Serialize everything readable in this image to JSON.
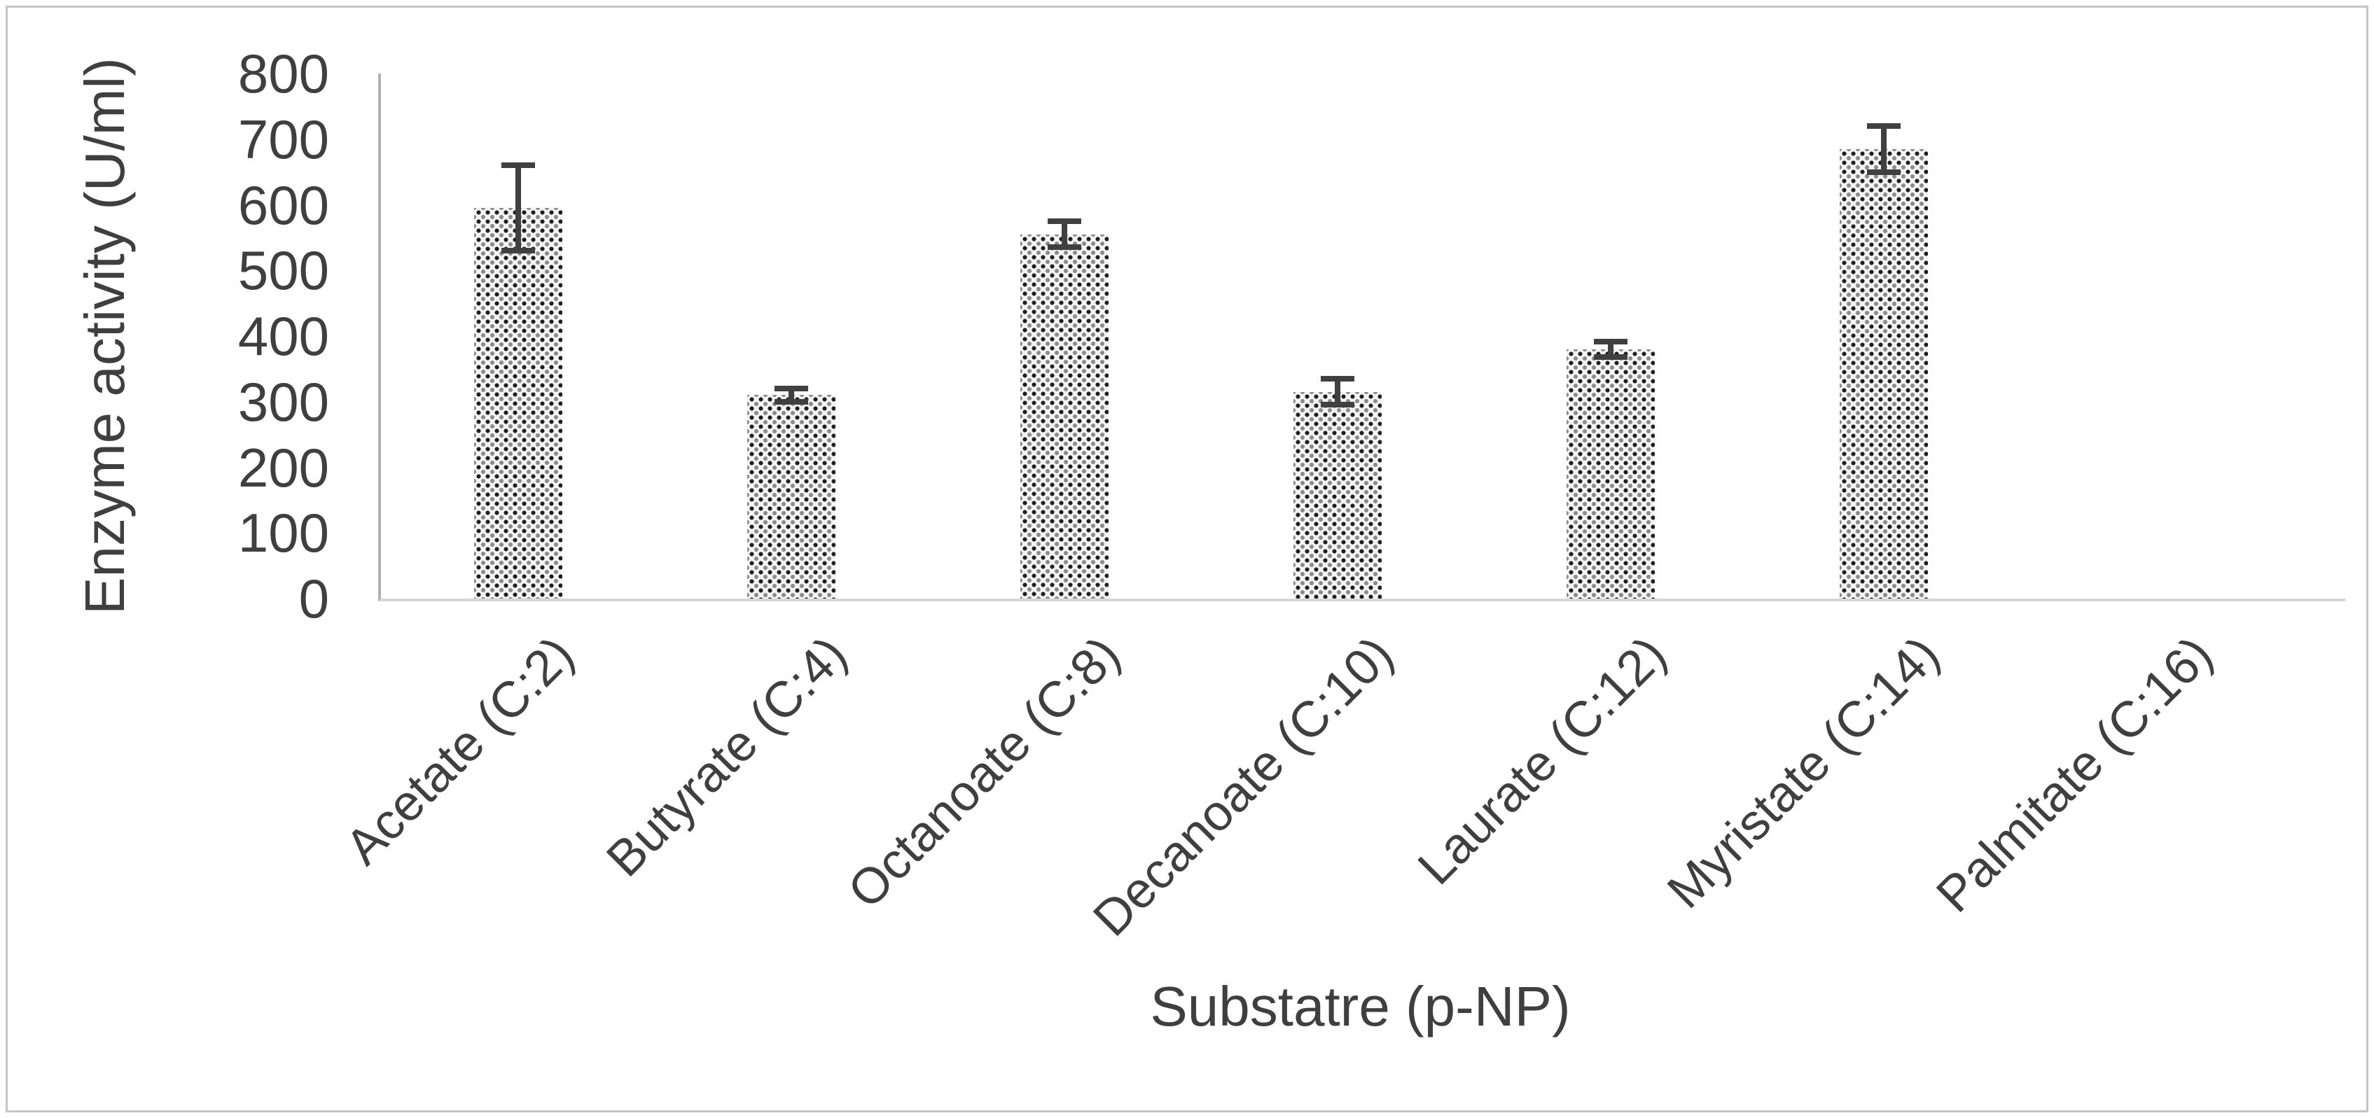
{
  "figure": {
    "background": "#ffffff",
    "border_color": "#c4c4c4"
  },
  "chart_data": {
    "type": "bar",
    "title": "",
    "xlabel": "Substatre (p-NP)",
    "ylabel": "Enzyme activity (U/ml)",
    "categories": [
      "Acetate (C:2)",
      "Butyrate (C:4)",
      "Octanoate (C:8)",
      "Decanoate (C:10)",
      "Laurate (C:12)",
      "Myristate (C:14)",
      "Palmitate (C:16)"
    ],
    "values": [
      595,
      310,
      555,
      315,
      380,
      685,
      0
    ],
    "errors": [
      65,
      10,
      20,
      20,
      12,
      35,
      0
    ],
    "ylim": [
      0,
      800
    ],
    "yticks": [
      0,
      100,
      200,
      300,
      400,
      500,
      600,
      700,
      800
    ],
    "grid": false,
    "legend": false,
    "bar_fill": "dotted-checker-pattern",
    "bar_color_dark": "#1f1f1f",
    "bar_color_light": "#8c8c8c",
    "axis_color": "#b0b0b0",
    "baseline_color": "#d6d6d6",
    "error_bar_color": "#404040",
    "text_color": "#3f3f3f"
  }
}
